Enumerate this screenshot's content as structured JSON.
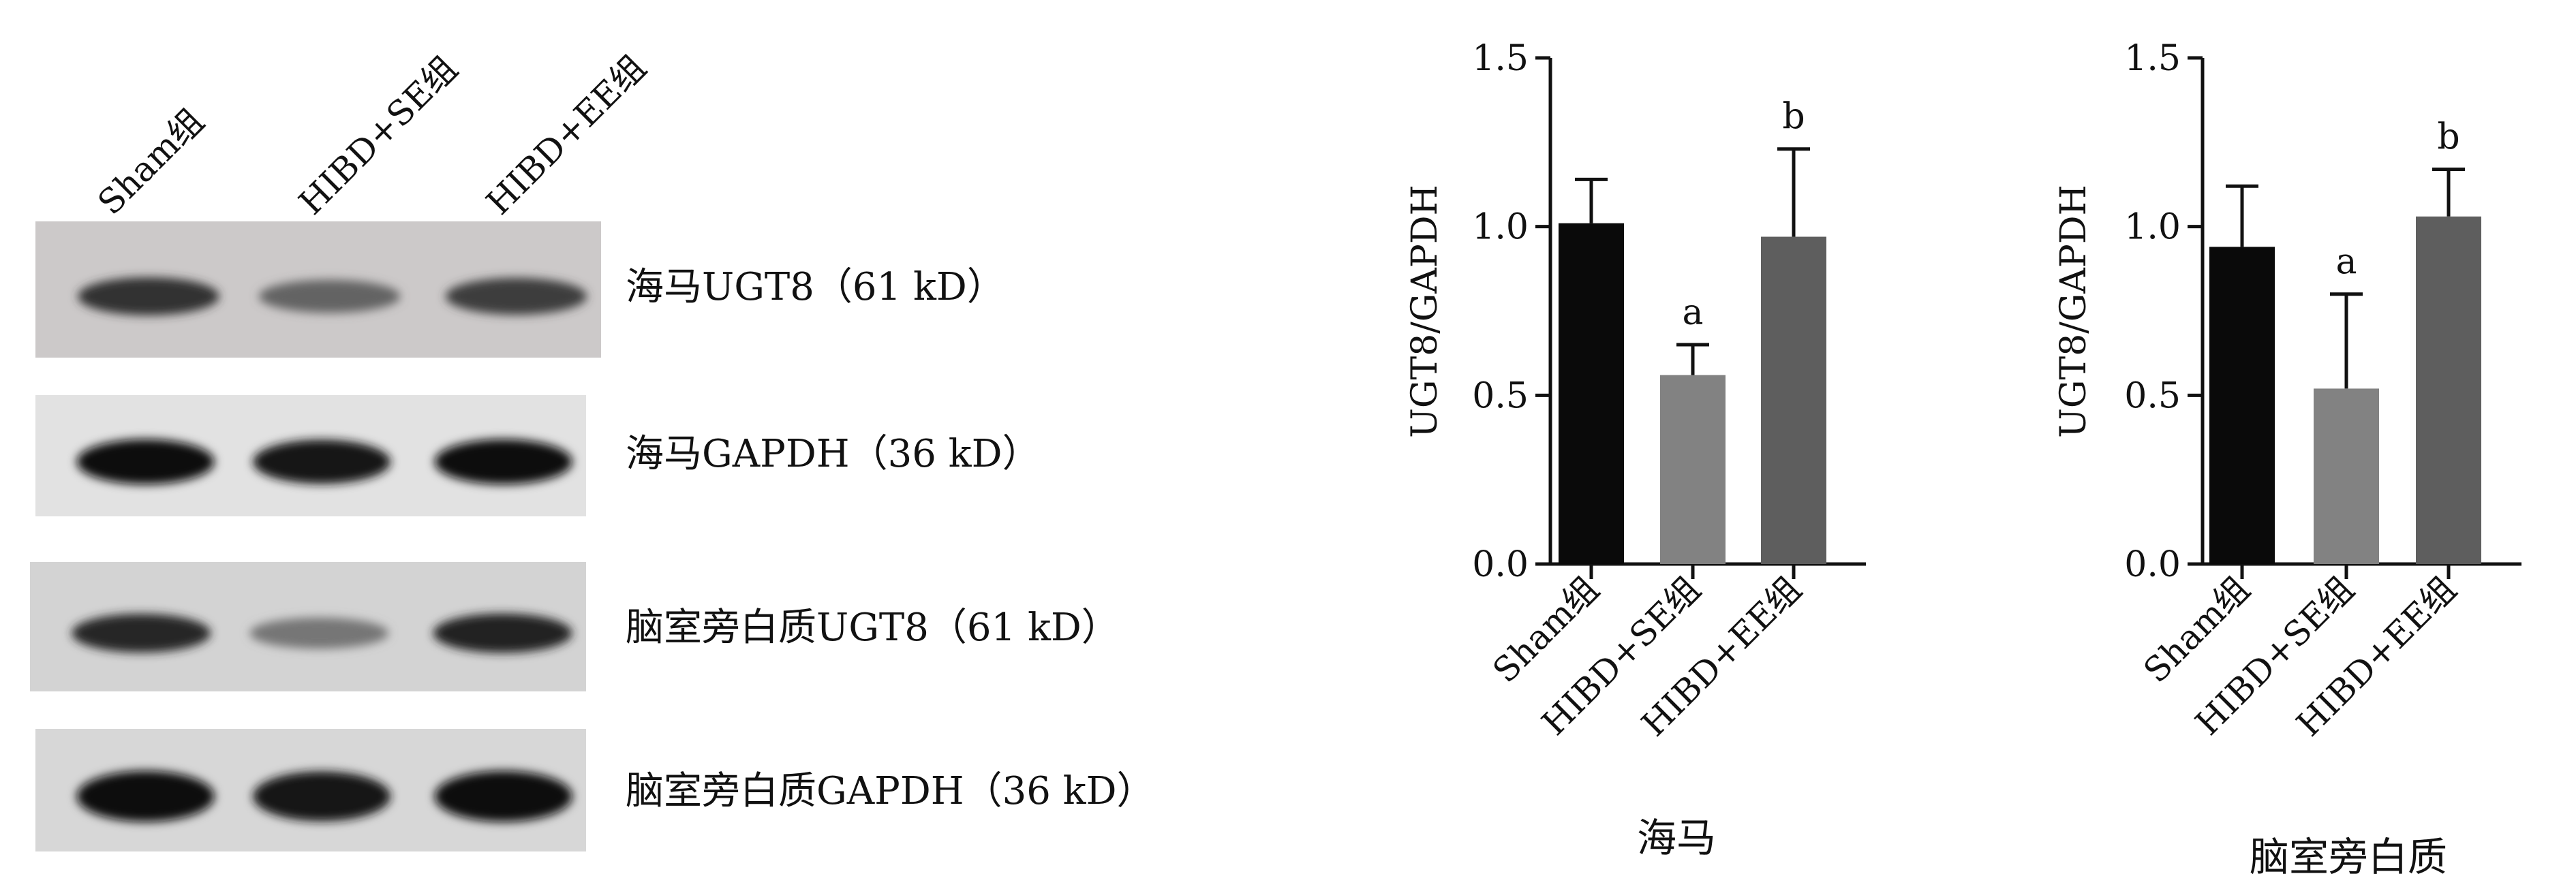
{
  "figure": {
    "blot": {
      "lane_labels": [
        "Sham组",
        "HIBD+SE组",
        "HIBD+EE组"
      ],
      "rows": [
        {
          "label": "海马UGT8（61 kD）",
          "band_intensity": [
            0.78,
            0.52,
            0.72
          ],
          "background": "#ccc9c9"
        },
        {
          "label": "海马GAPDH（36 kD）",
          "band_intensity": [
            0.95,
            0.9,
            0.95
          ],
          "background": "#e2e2e2"
        },
        {
          "label": "脑室旁白质UGT8（61 kD）",
          "band_intensity": [
            0.82,
            0.42,
            0.85
          ],
          "background": "#d3d3d3"
        },
        {
          "label": "脑室旁白质GAPDH（36 kD）",
          "band_intensity": [
            0.97,
            0.92,
            0.97
          ],
          "background": "#d7d7d7"
        }
      ]
    }
  },
  "chart_data": [
    {
      "type": "bar",
      "title": "海马",
      "xlabel": "",
      "ylabel": "UGT8/GAPDH",
      "categories": [
        "Sham组",
        "HIBD+SE组",
        "HIBD+EE组"
      ],
      "values": [
        1.01,
        0.56,
        0.97
      ],
      "errors": [
        0.13,
        0.09,
        0.26
      ],
      "annotations": [
        "",
        "a",
        "b"
      ],
      "colors": [
        "#0a0a0a",
        "#828282",
        "#5e5e5e"
      ],
      "ylim": [
        0,
        1.5
      ],
      "yticks": [
        "0.0",
        "0.5",
        "1.0",
        "1.5"
      ],
      "grid": false
    },
    {
      "type": "bar",
      "title": "脑室旁白质",
      "xlabel": "",
      "ylabel": "UGT8/GAPDH",
      "categories": [
        "Sham组",
        "HIBD+SE组",
        "HIBD+EE组"
      ],
      "values": [
        0.94,
        0.52,
        1.03
      ],
      "errors": [
        0.18,
        0.28,
        0.14
      ],
      "annotations": [
        "",
        "a",
        "b"
      ],
      "colors": [
        "#0a0a0a",
        "#828282",
        "#5e5e5e"
      ],
      "ylim": [
        0,
        1.5
      ],
      "yticks": [
        "0.0",
        "0.5",
        "1.0",
        "1.5"
      ],
      "grid": false
    }
  ]
}
